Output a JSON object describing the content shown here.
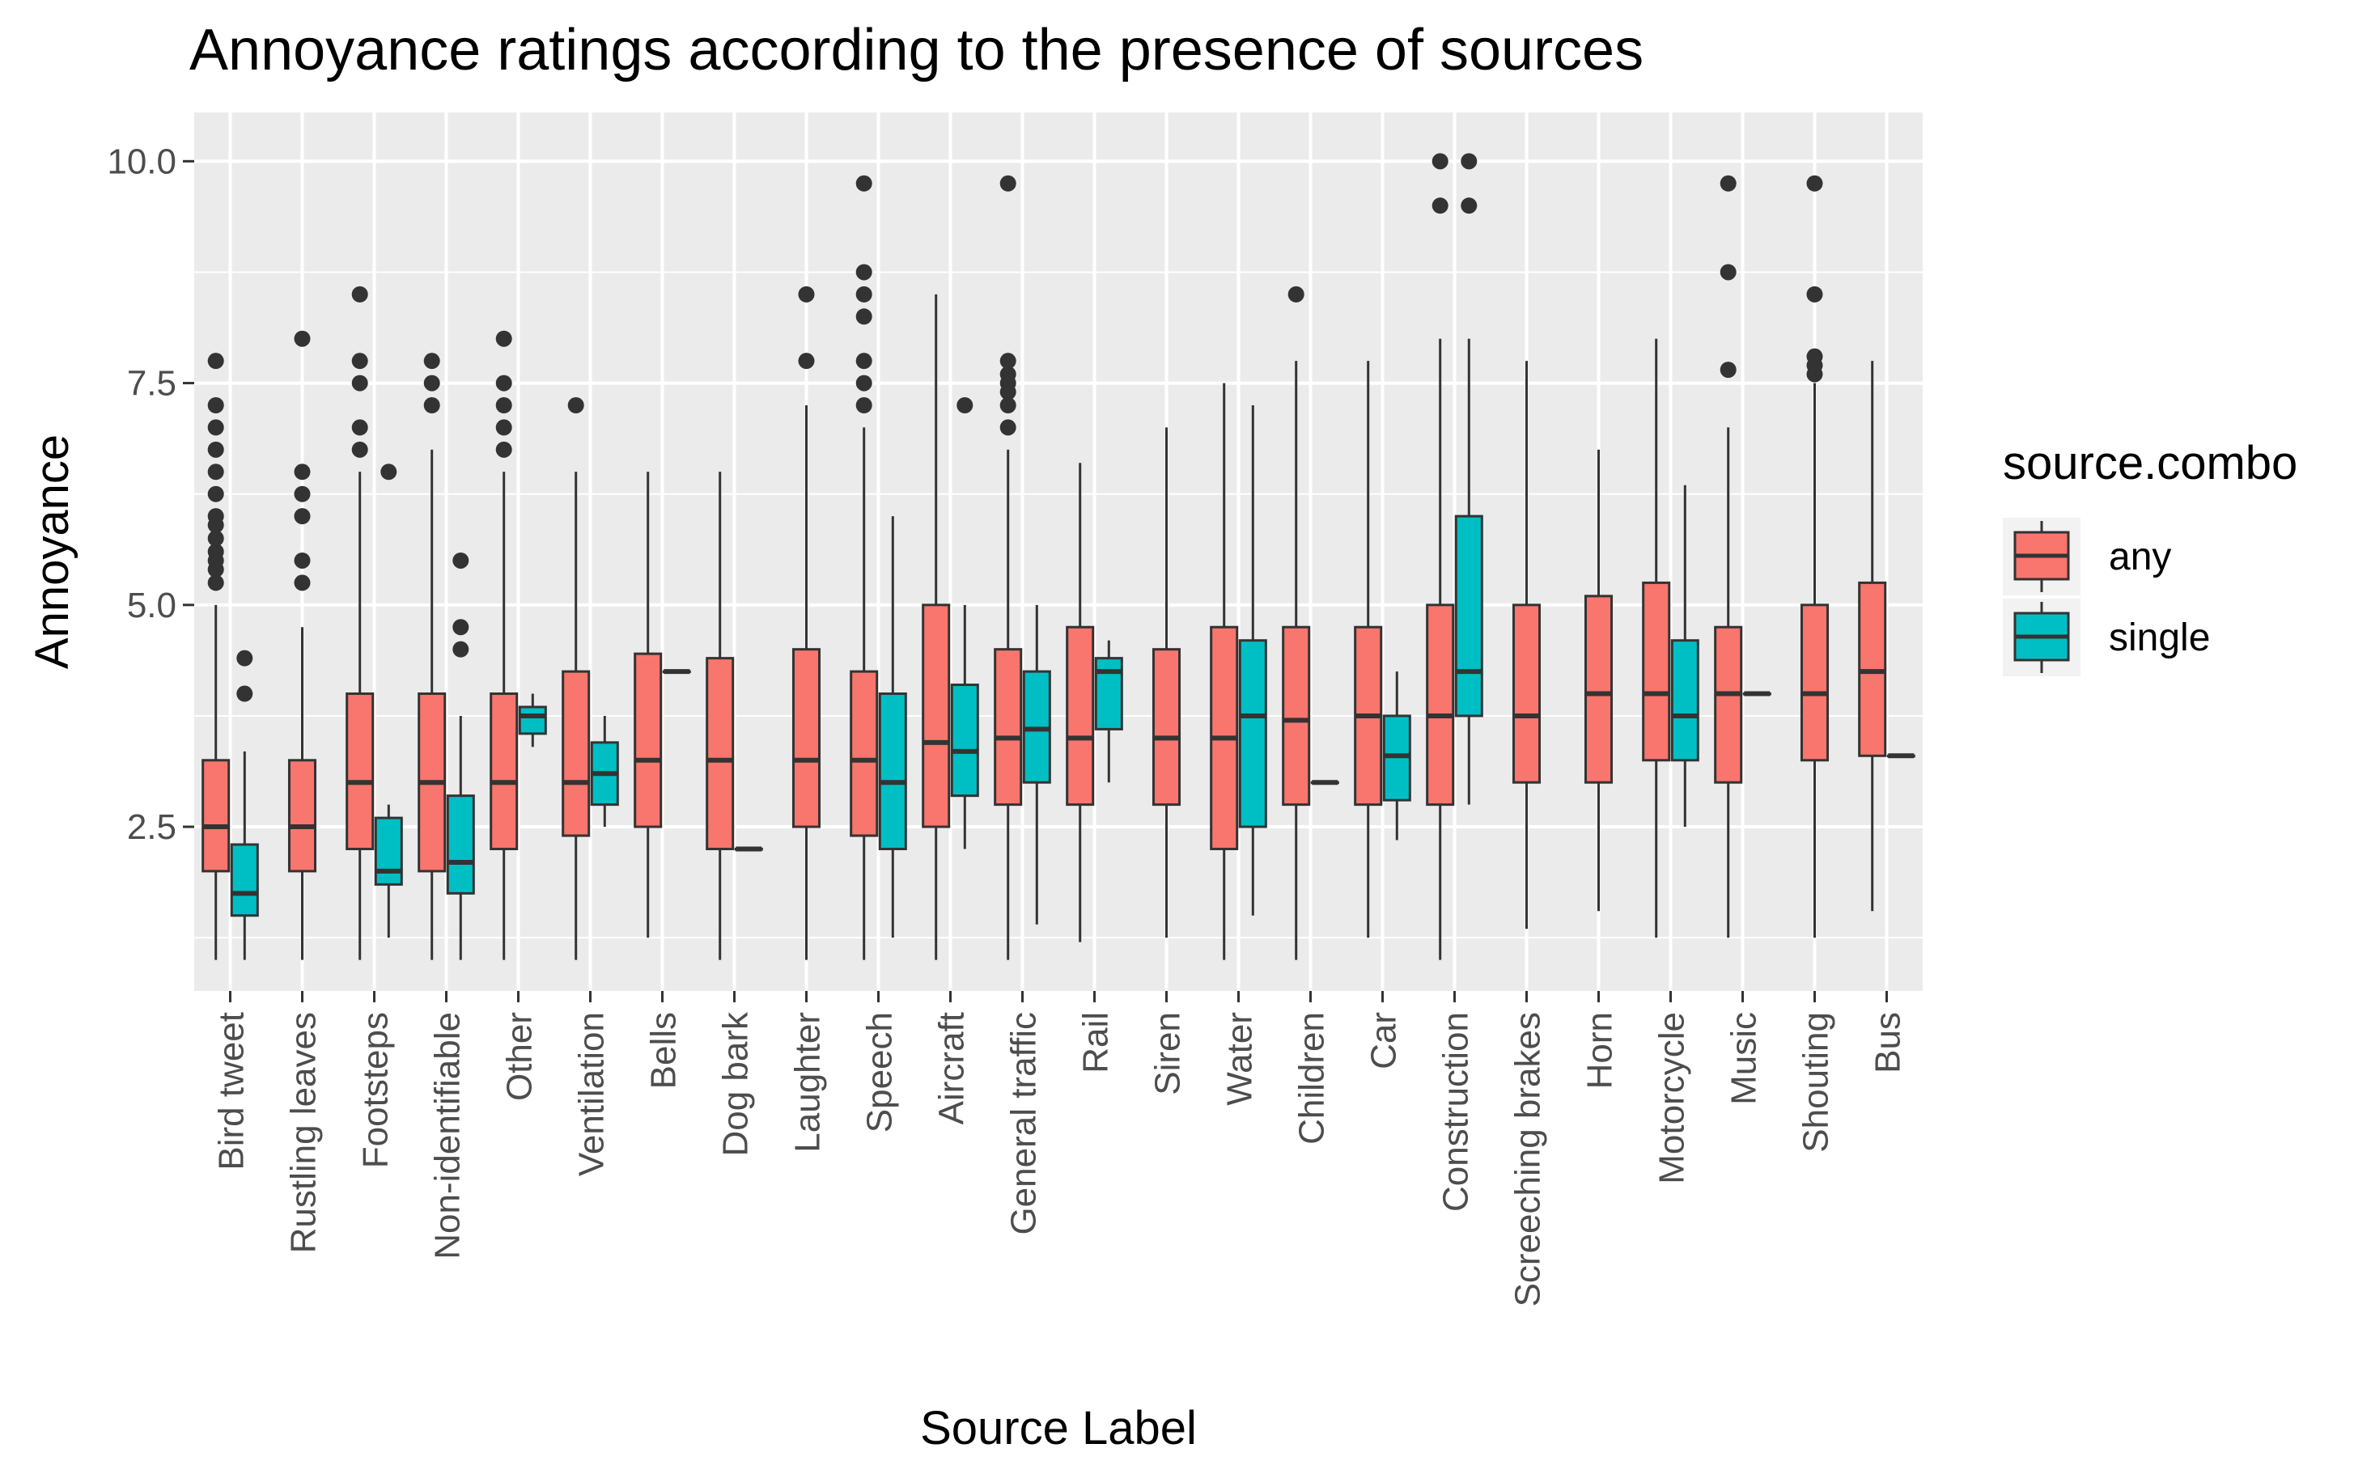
{
  "chart_data": {
    "type": "boxplot",
    "title": "Annoyance ratings according to the presence of sources",
    "xlabel": "Source Label",
    "ylabel": "Annoyance",
    "ylim": [
      0.65,
      10.55
    ],
    "yticks": [
      2.5,
      5.0,
      7.5,
      10.0
    ],
    "ytick_labels": [
      "2.5",
      "5.0",
      "7.5",
      "10.0"
    ],
    "grid": true,
    "legend": {
      "title": "source.combo",
      "placement": "right",
      "entries": [
        {
          "name": "any",
          "color": "#F8766D"
        },
        {
          "name": "single",
          "color": "#00BFC4"
        }
      ]
    },
    "categories": [
      "Bird tweet",
      "Rustling leaves",
      "Footsteps",
      "Non-identifiable",
      "Other",
      "Ventilation",
      "Bells",
      "Dog bark",
      "Laughter",
      "Speech",
      "Aircraft",
      "General traffic",
      "Rail",
      "Siren",
      "Water",
      "Children",
      "Car",
      "Construction",
      "Screeching brakes",
      "Horn",
      "Motorcycle",
      "Music",
      "Shouting",
      "Bus"
    ],
    "series": [
      {
        "name": "any",
        "color": "#F8766D",
        "boxes": [
          {
            "category": "Bird tweet",
            "low": 1.0,
            "q1": 2.0,
            "median": 2.5,
            "q3": 3.25,
            "high": 5.0,
            "outliers": [
              5.25,
              5.4,
              5.5,
              5.6,
              5.75,
              5.9,
              6.0,
              6.25,
              6.5,
              6.75,
              7.0,
              7.25,
              7.75
            ]
          },
          {
            "category": "Rustling leaves",
            "low": 1.0,
            "q1": 2.0,
            "median": 2.5,
            "q3": 3.25,
            "high": 4.75,
            "outliers": [
              5.25,
              5.5,
              6.0,
              6.25,
              6.5,
              8.0
            ]
          },
          {
            "category": "Footsteps",
            "low": 1.0,
            "q1": 2.25,
            "median": 3.0,
            "q3": 4.0,
            "high": 6.5,
            "outliers": [
              6.75,
              7.0,
              7.5,
              7.75,
              8.5
            ]
          },
          {
            "category": "Non-identifiable",
            "low": 1.0,
            "q1": 2.0,
            "median": 3.0,
            "q3": 4.0,
            "high": 6.75,
            "outliers": [
              7.25,
              7.5,
              7.75
            ]
          },
          {
            "category": "Other",
            "low": 1.0,
            "q1": 2.25,
            "median": 3.0,
            "q3": 4.0,
            "high": 6.5,
            "outliers": [
              6.75,
              7.0,
              7.25,
              7.5,
              8.0
            ]
          },
          {
            "category": "Ventilation",
            "low": 1.0,
            "q1": 2.4,
            "median": 3.0,
            "q3": 4.25,
            "high": 6.5,
            "outliers": [
              7.25
            ]
          },
          {
            "category": "Bells",
            "low": 1.25,
            "q1": 2.5,
            "median": 3.25,
            "q3": 4.45,
            "high": 6.5,
            "outliers": []
          },
          {
            "category": "Dog bark",
            "low": 1.0,
            "q1": 2.25,
            "median": 3.25,
            "q3": 4.4,
            "high": 6.5,
            "outliers": []
          },
          {
            "category": "Laughter",
            "low": 1.0,
            "q1": 2.5,
            "median": 3.25,
            "q3": 4.5,
            "high": 7.25,
            "outliers": [
              7.75,
              8.5
            ]
          },
          {
            "category": "Speech",
            "low": 1.0,
            "q1": 2.4,
            "median": 3.25,
            "q3": 4.25,
            "high": 7.0,
            "outliers": [
              7.25,
              7.5,
              7.75,
              8.25,
              8.5,
              8.75,
              9.75
            ]
          },
          {
            "category": "Aircraft",
            "low": 1.0,
            "q1": 2.5,
            "median": 3.45,
            "q3": 5.0,
            "high": 8.5,
            "outliers": []
          },
          {
            "category": "General traffic",
            "low": 1.0,
            "q1": 2.75,
            "median": 3.5,
            "q3": 4.5,
            "high": 6.75,
            "outliers": [
              7.0,
              7.25,
              7.4,
              7.5,
              7.6,
              7.75,
              9.75
            ]
          },
          {
            "category": "Rail",
            "low": 1.2,
            "q1": 2.75,
            "median": 3.5,
            "q3": 4.75,
            "high": 6.6,
            "outliers": []
          },
          {
            "category": "Siren",
            "low": 1.25,
            "q1": 2.75,
            "median": 3.5,
            "q3": 4.5,
            "high": 7.0,
            "outliers": []
          },
          {
            "category": "Water",
            "low": 1.0,
            "q1": 2.25,
            "median": 3.5,
            "q3": 4.75,
            "high": 7.5,
            "outliers": []
          },
          {
            "category": "Children",
            "low": 1.0,
            "q1": 2.75,
            "median": 3.7,
            "q3": 4.75,
            "high": 7.75,
            "outliers": [
              8.5
            ]
          },
          {
            "category": "Car",
            "low": 1.25,
            "q1": 2.75,
            "median": 3.75,
            "q3": 4.75,
            "high": 7.75,
            "outliers": []
          },
          {
            "category": "Construction",
            "low": 1.0,
            "q1": 2.75,
            "median": 3.75,
            "q3": 5.0,
            "high": 8.0,
            "outliers": [
              9.5,
              10.0
            ]
          },
          {
            "category": "Screeching brakes",
            "low": 1.35,
            "q1": 3.0,
            "median": 3.75,
            "q3": 5.0,
            "high": 7.75,
            "outliers": []
          },
          {
            "category": "Horn",
            "low": 1.55,
            "q1": 3.0,
            "median": 4.0,
            "q3": 5.1,
            "high": 6.75,
            "outliers": []
          },
          {
            "category": "Motorcycle",
            "low": 1.25,
            "q1": 3.25,
            "median": 4.0,
            "q3": 5.25,
            "high": 8.0,
            "outliers": []
          },
          {
            "category": "Music",
            "low": 1.25,
            "q1": 3.0,
            "median": 4.0,
            "q3": 4.75,
            "high": 7.0,
            "outliers": [
              7.65,
              8.75,
              9.75
            ]
          },
          {
            "category": "Shouting",
            "low": 1.25,
            "q1": 3.25,
            "median": 4.0,
            "q3": 5.0,
            "high": 7.5,
            "outliers": [
              7.6,
              7.7,
              7.8,
              8.5,
              9.75
            ]
          },
          {
            "category": "Bus",
            "low": 1.55,
            "q1": 3.3,
            "median": 4.25,
            "q3": 5.25,
            "high": 7.75,
            "outliers": []
          }
        ]
      },
      {
        "name": "single",
        "color": "#00BFC4",
        "boxes": [
          {
            "category": "Bird tweet",
            "low": 1.0,
            "q1": 1.5,
            "median": 1.75,
            "q3": 2.3,
            "high": 3.35,
            "outliers": [
              4.0,
              4.4
            ]
          },
          {
            "category": "Footsteps",
            "low": 1.25,
            "q1": 1.85,
            "median": 2.0,
            "q3": 2.6,
            "high": 2.75,
            "outliers": [
              6.5
            ]
          },
          {
            "category": "Non-identifiable",
            "low": 1.0,
            "q1": 1.75,
            "median": 2.1,
            "q3": 2.85,
            "high": 3.75,
            "outliers": [
              4.5,
              4.75,
              5.5
            ]
          },
          {
            "category": "Other",
            "low": 3.4,
            "q1": 3.55,
            "median": 3.75,
            "q3": 3.85,
            "high": 4.0,
            "outliers": []
          },
          {
            "category": "Ventilation",
            "low": 2.5,
            "q1": 2.75,
            "median": 3.1,
            "q3": 3.45,
            "high": 3.75,
            "outliers": []
          },
          {
            "category": "Bells",
            "low": 4.25,
            "q1": 4.25,
            "median": 4.25,
            "q3": 4.25,
            "high": 4.25,
            "outliers": []
          },
          {
            "category": "Dog bark",
            "low": 2.25,
            "q1": 2.25,
            "median": 2.25,
            "q3": 2.25,
            "high": 2.25,
            "outliers": []
          },
          {
            "category": "Speech",
            "low": 1.25,
            "q1": 2.25,
            "median": 3.0,
            "q3": 4.0,
            "high": 6.0,
            "outliers": []
          },
          {
            "category": "Aircraft",
            "low": 2.25,
            "q1": 2.85,
            "median": 3.35,
            "q3": 4.1,
            "high": 5.0,
            "outliers": [
              7.25
            ]
          },
          {
            "category": "General traffic",
            "low": 1.4,
            "q1": 3.0,
            "median": 3.6,
            "q3": 4.25,
            "high": 5.0,
            "outliers": []
          },
          {
            "category": "Rail",
            "low": 3.0,
            "q1": 3.6,
            "median": 4.25,
            "q3": 4.4,
            "high": 4.6,
            "outliers": []
          },
          {
            "category": "Water",
            "low": 1.5,
            "q1": 2.5,
            "median": 3.75,
            "q3": 4.6,
            "high": 7.25,
            "outliers": []
          },
          {
            "category": "Children",
            "low": 3.0,
            "q1": 3.0,
            "median": 3.0,
            "q3": 3.0,
            "high": 3.0,
            "outliers": []
          },
          {
            "category": "Car",
            "low": 2.35,
            "q1": 2.8,
            "median": 3.3,
            "q3": 3.75,
            "high": 4.25,
            "outliers": []
          },
          {
            "category": "Construction",
            "low": 2.75,
            "q1": 3.75,
            "median": 4.25,
            "q3": 6.0,
            "high": 8.0,
            "outliers": [
              9.5,
              10.0
            ]
          },
          {
            "category": "Motorcycle",
            "low": 2.5,
            "q1": 3.25,
            "median": 3.75,
            "q3": 4.6,
            "high": 6.35,
            "outliers": []
          },
          {
            "category": "Music",
            "low": 4.0,
            "q1": 4.0,
            "median": 4.0,
            "q3": 4.0,
            "high": 4.0,
            "outliers": []
          },
          {
            "category": "Bus",
            "low": 3.3,
            "q1": 3.3,
            "median": 3.3,
            "q3": 3.3,
            "high": 3.3,
            "outliers": []
          }
        ]
      }
    ]
  }
}
